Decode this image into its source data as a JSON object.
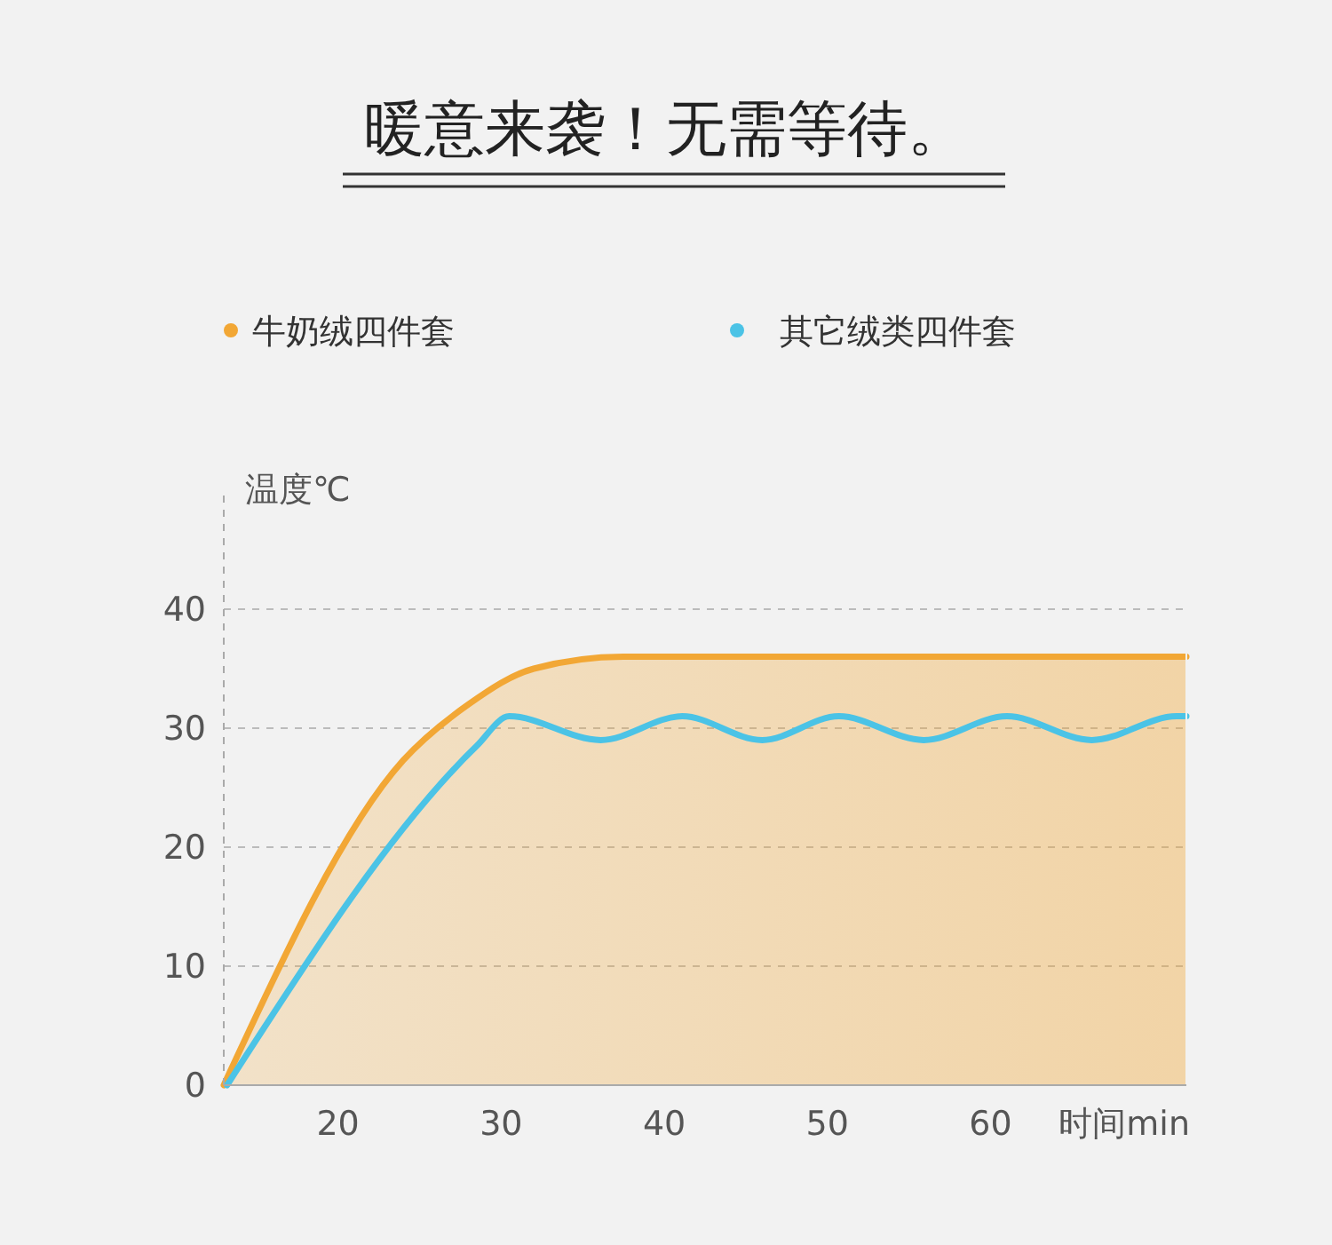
{
  "chart_data": {
    "type": "line",
    "title": "暖意来袭！无需等待。",
    "xlabel": "时间min",
    "ylabel": "温度℃",
    "xlim": [
      13,
      72
    ],
    "xticks": [
      20,
      30,
      40,
      50,
      60
    ],
    "ylim": [
      0,
      50
    ],
    "yticks": [
      0,
      10,
      20,
      30,
      40
    ],
    "grid": "y",
    "legend": "top",
    "marker": "none",
    "series": [
      {
        "name": "牛奶绒四件套",
        "type": "area",
        "color": "#f2a735",
        "x": [
          13,
          24,
          28,
          32,
          37.5,
          72
        ],
        "values": [
          0,
          27.3,
          32,
          35,
          36,
          36
        ]
      },
      {
        "name": "其它绒类四件套",
        "color": "#4bc3e6",
        "x": [
          13.2,
          28.5,
          30.5,
          36.1,
          41.1,
          46,
          50.7,
          55.9,
          61,
          66.2,
          71.4,
          72
        ],
        "values": [
          0,
          28.5,
          31,
          29,
          31,
          29,
          31,
          29,
          31,
          29,
          31,
          31
        ]
      }
    ]
  }
}
